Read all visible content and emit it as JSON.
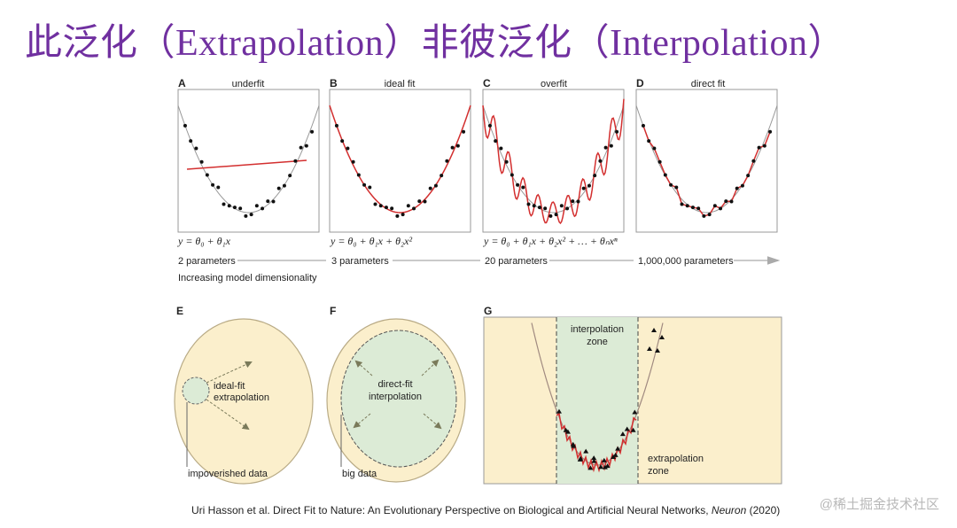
{
  "title": "此泛化（Extrapolation）非彼泛化（Interpolation）",
  "colors": {
    "title": "#7030a0",
    "fit_curve": "#d32f2f",
    "true_curve": "#999999",
    "data_region": "#fbefcc",
    "interp_region": "#dcebd6"
  },
  "panels": [
    {
      "letter": "A",
      "title": "underfit",
      "equation": "y = θ₀ + θ₁x",
      "params": "2 parameters"
    },
    {
      "letter": "B",
      "title": "ideal fit",
      "equation": "y = θ₀ + θ₁x + θ₂x²",
      "params": "3 parameters"
    },
    {
      "letter": "C",
      "title": "overfit",
      "equation": "y = θ₀ + θ₁x + θ₂x² + … + θₙxⁿ",
      "params": "20 parameters"
    },
    {
      "letter": "D",
      "title": "direct fit",
      "equation": "",
      "params": "1,000,000 parameters"
    }
  ],
  "dimensionality_label": "Increasing model dimensionality",
  "panel_e": {
    "letter": "E",
    "label_line1": "ideal-fit",
    "label_line2": "extrapolation",
    "caption": "impoverished data"
  },
  "panel_f": {
    "letter": "F",
    "label_line1": "direct-fit",
    "label_line2": "interpolation",
    "caption": "big data"
  },
  "panel_g": {
    "letter": "G",
    "interp_line1": "interpolation",
    "interp_line2": "zone",
    "extrap_line1": "extrapolation",
    "extrap_line2": "zone"
  },
  "citation": {
    "text": "Uri Hasson et al. Direct Fit to Nature: An Evolutionary Perspective on Biological and Artificial Neural Networks, ",
    "journal": "Neuron",
    "year": " (2020)"
  },
  "watermark": "@稀土掘金技术社区"
}
